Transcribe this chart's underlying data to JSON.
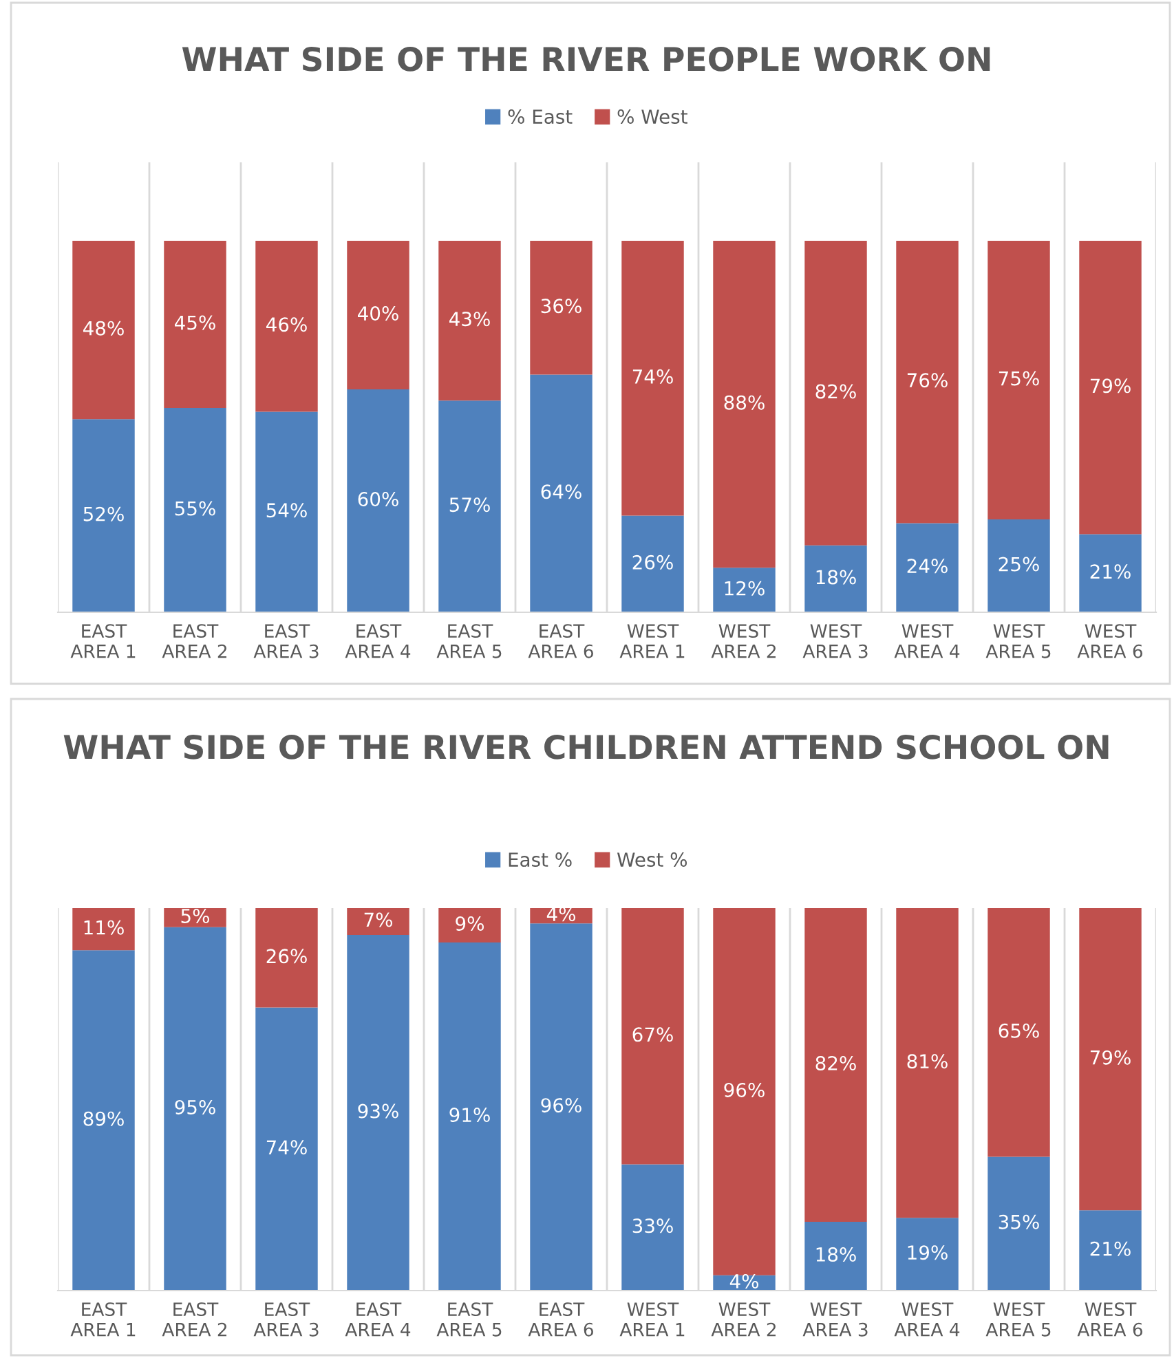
{
  "chart_data": [
    {
      "type": "bar",
      "stacked": true,
      "title": "WHAT SIDE OF THE RIVER PEOPLE WORK ON",
      "legend": "top",
      "grid": "x",
      "tick_labels": "x",
      "categories": [
        "EAST AREA 1",
        "EAST AREA 2",
        "EAST AREA 3",
        "EAST AREA 4",
        "EAST AREA 5",
        "EAST AREA 6",
        "WEST AREA 1",
        "WEST AREA 2",
        "WEST AREA 3",
        "WEST AREA 4",
        "WEST AREA 5",
        "WEST AREA 6"
      ],
      "series": [
        {
          "name": "% East",
          "color": "#4f81bd",
          "values": [
            52,
            55,
            54,
            60,
            57,
            64,
            26,
            12,
            18,
            24,
            25,
            21
          ],
          "value_labels": [
            "52%",
            "55%",
            "54%",
            "60%",
            "57%",
            "64%",
            "26%",
            "12%",
            "18%",
            "24%",
            "25%",
            "21%"
          ]
        },
        {
          "name": "% West",
          "color": "#c0504d",
          "values": [
            48,
            45,
            46,
            40,
            43,
            36,
            74,
            88,
            82,
            76,
            75,
            79
          ],
          "value_labels": [
            "48%",
            "45%",
            "46%",
            "40%",
            "43%",
            "36%",
            "74%",
            "88%",
            "82%",
            "76%",
            "75%",
            "79%"
          ]
        }
      ]
    },
    {
      "type": "bar",
      "stacked": true,
      "title": "WHAT SIDE OF THE RIVER CHILDREN ATTEND SCHOOL ON",
      "legend": "top",
      "grid": "x",
      "tick_labels": "x",
      "categories": [
        "EAST AREA 1",
        "EAST AREA 2",
        "EAST AREA 3",
        "EAST AREA 4",
        "EAST AREA 5",
        "EAST AREA 6",
        "WEST AREA 1",
        "WEST AREA 2",
        "WEST AREA 3",
        "WEST AREA 4",
        "WEST AREA 5",
        "WEST AREA 6"
      ],
      "series": [
        {
          "name": "East %",
          "color": "#4f81bd",
          "values": [
            89,
            95,
            74,
            93,
            91,
            96,
            33,
            4,
            18,
            19,
            35,
            21
          ],
          "value_labels": [
            "89%",
            "95%",
            "74%",
            "93%",
            "91%",
            "96%",
            "33%",
            "4%",
            "18%",
            "19%",
            "35%",
            "21%"
          ]
        },
        {
          "name": "West %",
          "color": "#c0504d",
          "values": [
            11,
            5,
            26,
            7,
            9,
            4,
            67,
            96,
            82,
            81,
            65,
            79
          ],
          "value_labels": [
            "11%",
            "5%",
            "26%",
            "7%",
            "9%",
            "4%",
            "67%",
            "96%",
            "82%",
            "81%",
            "65%",
            "79%"
          ]
        }
      ]
    }
  ]
}
